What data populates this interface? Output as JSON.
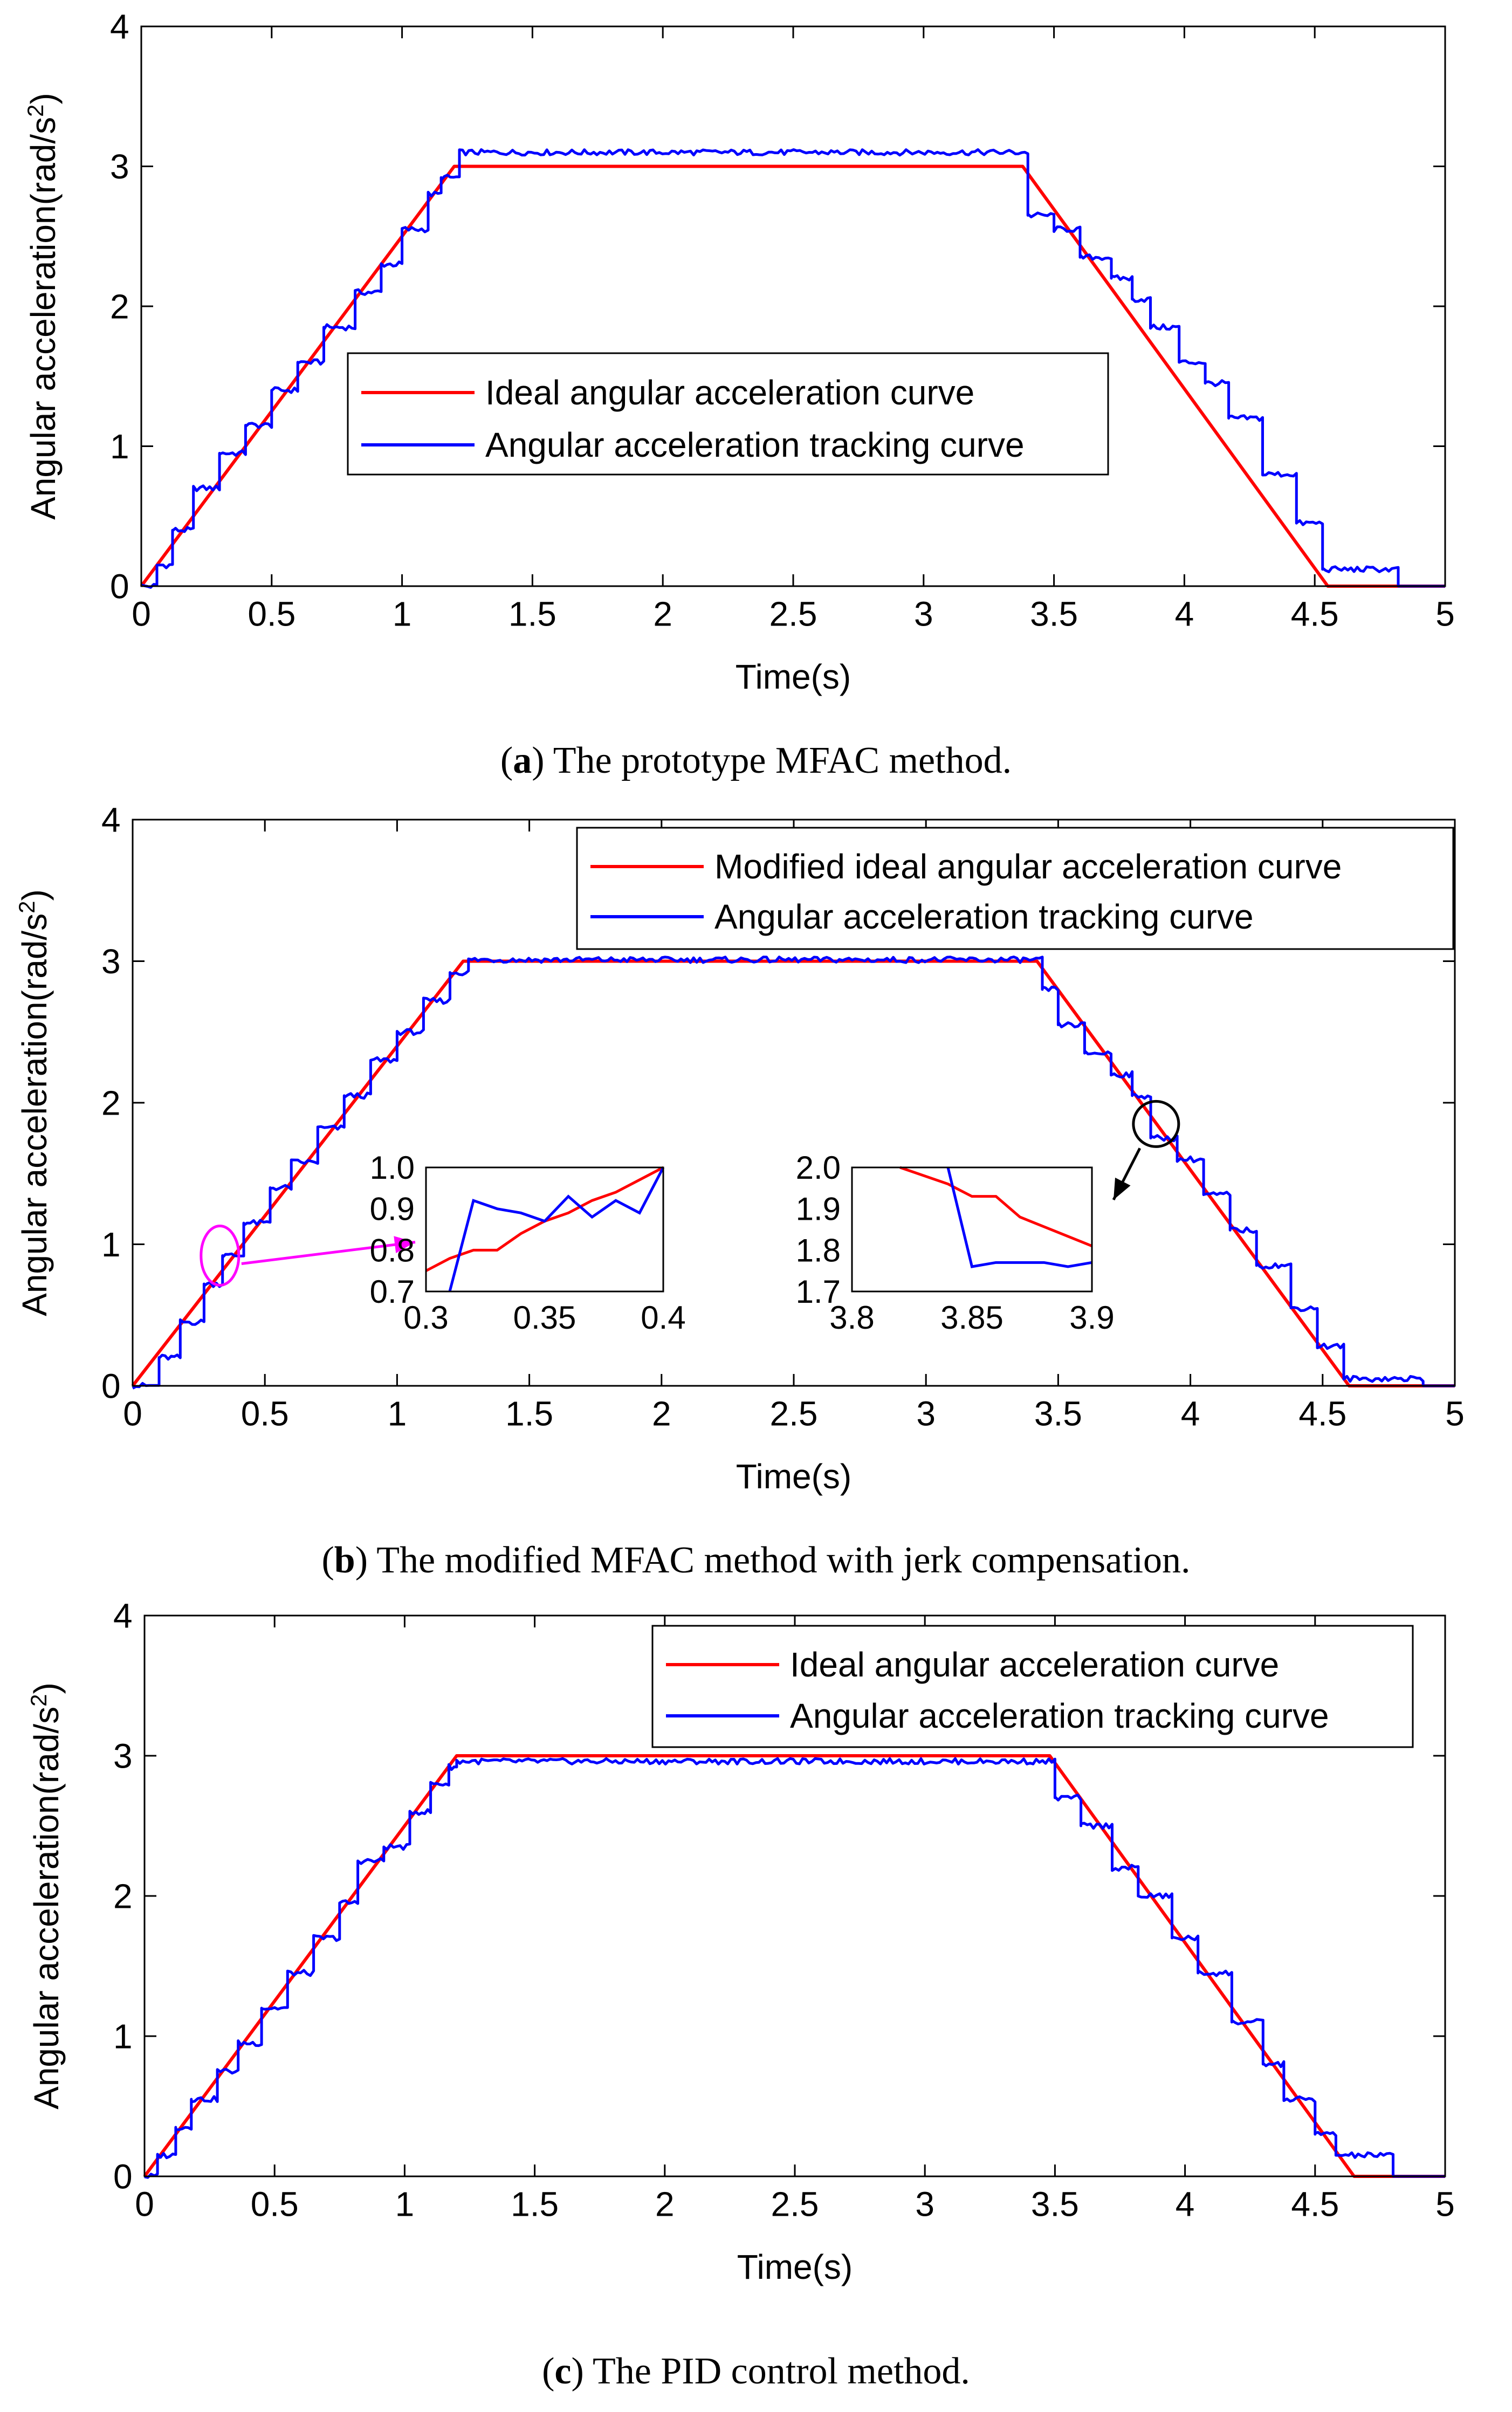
{
  "figure": {
    "panels": [
      {
        "caption_letter": "a",
        "caption_rest": ") The prototype MFAC method.",
        "legend_location": "center-left"
      },
      {
        "caption_letter": "b",
        "caption_rest": ") The modified MFAC method with jerk compensation.",
        "legend_location": "top-right"
      },
      {
        "caption_letter": "c",
        "caption_rest": ") The PID control method.",
        "legend_location": "top-right"
      }
    ]
  },
  "chart_data": [
    {
      "type": "line",
      "title": "",
      "xlabel": "Time(s)",
      "ylabel": "Angular acceleration(rad/s",
      "ylabel_superscript": "2",
      "ylabel_suffix": ")",
      "xlim": [
        0,
        5
      ],
      "ylim": [
        0,
        4
      ],
      "xticks": [
        "0",
        "0.5",
        "1",
        "1.5",
        "2",
        "2.5",
        "3",
        "3.5",
        "4",
        "4.5",
        "5"
      ],
      "yticks": [
        "0",
        "1",
        "2",
        "3",
        "4"
      ],
      "grid": false,
      "series": [
        {
          "name": "Ideal angular acceleration curve",
          "color": "#ff0000",
          "kind": "smooth",
          "x": [
            0,
            1.2,
            3.38,
            4.55,
            5.0
          ],
          "y": [
            0,
            3.0,
            3.0,
            0.0,
            0.0
          ]
        },
        {
          "name": "Angular acceleration tracking curve",
          "color": "#0000ff",
          "kind": "staircase",
          "steps": [
            [
              0,
              0
            ],
            [
              0.06,
              0.15
            ],
            [
              0.12,
              0.4
            ],
            [
              0.2,
              0.7
            ],
            [
              0.3,
              0.95
            ],
            [
              0.4,
              1.15
            ],
            [
              0.5,
              1.4
            ],
            [
              0.6,
              1.6
            ],
            [
              0.7,
              1.85
            ],
            [
              0.82,
              2.1
            ],
            [
              0.92,
              2.3
            ],
            [
              1.0,
              2.55
            ],
            [
              1.1,
              2.8
            ],
            [
              1.15,
              2.92
            ],
            [
              1.22,
              3.1
            ],
            [
              3.4,
              2.65
            ],
            [
              3.5,
              2.55
            ],
            [
              3.6,
              2.35
            ],
            [
              3.72,
              2.2
            ],
            [
              3.8,
              2.05
            ],
            [
              3.87,
              1.85
            ],
            [
              3.98,
              1.6
            ],
            [
              4.08,
              1.45
            ],
            [
              4.17,
              1.2
            ],
            [
              4.3,
              0.8
            ],
            [
              4.43,
              0.45
            ],
            [
              4.53,
              0.12
            ],
            [
              4.82,
              0.0
            ],
            [
              5.0,
              0.0
            ]
          ]
        }
      ]
    },
    {
      "type": "line",
      "title": "",
      "xlabel": "Time(s)",
      "ylabel": "Angular acceleration(rad/s",
      "ylabel_superscript": "2",
      "ylabel_suffix": ")",
      "xlim": [
        0,
        5
      ],
      "ylim": [
        0,
        4
      ],
      "xticks": [
        "0",
        "0.5",
        "1",
        "1.5",
        "2",
        "2.5",
        "3",
        "3.5",
        "4",
        "4.5",
        "5"
      ],
      "yticks": [
        "0",
        "1",
        "2",
        "3",
        "4"
      ],
      "grid": false,
      "series": [
        {
          "name": "Modified ideal angular acceleration curve",
          "color": "#ff0000",
          "kind": "smooth",
          "x": [
            0,
            1.25,
            3.42,
            4.6,
            5.0
          ],
          "y": [
            0,
            3.0,
            3.0,
            0.0,
            0.0
          ]
        },
        {
          "name": "Angular acceleration tracking curve",
          "color": "#0000ff",
          "kind": "staircase",
          "steps": [
            [
              0,
              0
            ],
            [
              0.1,
              0.2
            ],
            [
              0.18,
              0.45
            ],
            [
              0.27,
              0.72
            ],
            [
              0.34,
              0.92
            ],
            [
              0.42,
              1.15
            ],
            [
              0.52,
              1.4
            ],
            [
              0.6,
              1.58
            ],
            [
              0.7,
              1.82
            ],
            [
              0.8,
              2.05
            ],
            [
              0.9,
              2.3
            ],
            [
              1.0,
              2.5
            ],
            [
              1.1,
              2.72
            ],
            [
              1.2,
              2.92
            ],
            [
              1.27,
              3.01
            ],
            [
              3.44,
              2.8
            ],
            [
              3.5,
              2.55
            ],
            [
              3.6,
              2.35
            ],
            [
              3.7,
              2.2
            ],
            [
              3.78,
              2.05
            ],
            [
              3.85,
              1.75
            ],
            [
              3.95,
              1.6
            ],
            [
              4.05,
              1.35
            ],
            [
              4.15,
              1.1
            ],
            [
              4.25,
              0.85
            ],
            [
              4.38,
              0.55
            ],
            [
              4.48,
              0.28
            ],
            [
              4.58,
              0.05
            ],
            [
              4.88,
              0.0
            ],
            [
              5.0,
              0.0
            ]
          ]
        }
      ],
      "annotations": [
        {
          "kind": "ellipse",
          "color": "#ff00ff",
          "center": [
            0.33,
            0.92
          ],
          "target_inset": 0
        },
        {
          "kind": "ellipse",
          "color": "#000000",
          "center": [
            3.87,
            1.85
          ],
          "target_inset": 1
        }
      ],
      "insets": [
        {
          "xlim": [
            0.3,
            0.4
          ],
          "ylim": [
            0.7,
            1.0
          ],
          "xticks": [
            "0.3",
            "0.35",
            "0.4"
          ],
          "yticks": [
            "0.7",
            "0.8",
            "0.9",
            "1.0"
          ],
          "series": [
            {
              "name": "Modified ideal angular acceleration curve",
              "color": "#ff0000",
              "x": [
                0.3,
                0.31,
                0.32,
                0.33,
                0.34,
                0.35,
                0.36,
                0.37,
                0.38,
                0.39,
                0.4
              ],
              "y": [
                0.75,
                0.78,
                0.8,
                0.8,
                0.84,
                0.87,
                0.89,
                0.92,
                0.94,
                0.97,
                1.0
              ]
            },
            {
              "name": "Angular acceleration tracking curve",
              "color": "#0000ff",
              "x": [
                0.31,
                0.32,
                0.33,
                0.34,
                0.35,
                0.36,
                0.37,
                0.38,
                0.39,
                0.4
              ],
              "y": [
                0.7,
                0.92,
                0.9,
                0.89,
                0.87,
                0.93,
                0.88,
                0.92,
                0.89,
                1.0
              ]
            }
          ]
        },
        {
          "xlim": [
            3.8,
            3.9
          ],
          "ylim": [
            1.7,
            2.0
          ],
          "xticks": [
            "3.8",
            "3.85",
            "3.9"
          ],
          "yticks": [
            "1.7",
            "1.8",
            "1.9",
            "2.0"
          ],
          "series": [
            {
              "name": "Modified ideal angular acceleration curve",
              "color": "#ff0000",
              "x": [
                3.82,
                3.84,
                3.85,
                3.86,
                3.87,
                3.9
              ],
              "y": [
                2.0,
                1.96,
                1.93,
                1.93,
                1.88,
                1.81
              ]
            },
            {
              "name": "Angular acceleration tracking curve",
              "color": "#0000ff",
              "x": [
                3.84,
                3.85,
                3.86,
                3.87,
                3.88,
                3.89,
                3.9
              ],
              "y": [
                2.0,
                1.76,
                1.77,
                1.77,
                1.77,
                1.76,
                1.77
              ]
            }
          ]
        }
      ]
    },
    {
      "type": "line",
      "title": "",
      "xlabel": "Time(s)",
      "ylabel": "Angular acceleration(rad/s",
      "ylabel_superscript": "2",
      "ylabel_suffix": ")",
      "xlim": [
        0,
        5
      ],
      "ylim": [
        0,
        4
      ],
      "xticks": [
        "0",
        "0.5",
        "1",
        "1.5",
        "2",
        "2.5",
        "3",
        "3.5",
        "4",
        "4.5",
        "5"
      ],
      "yticks": [
        "0",
        "1",
        "2",
        "3",
        "4"
      ],
      "grid": false,
      "series": [
        {
          "name": "Ideal angular acceleration curve",
          "color": "#ff0000",
          "kind": "smooth",
          "x": [
            0,
            1.2,
            3.48,
            4.65,
            5.0
          ],
          "y": [
            0,
            3.0,
            3.0,
            0.0,
            0.0
          ]
        },
        {
          "name": "Angular acceleration tracking curve",
          "color": "#0000ff",
          "kind": "staircase",
          "steps": [
            [
              0,
              0
            ],
            [
              0.05,
              0.15
            ],
            [
              0.12,
              0.35
            ],
            [
              0.18,
              0.55
            ],
            [
              0.28,
              0.75
            ],
            [
              0.36,
              0.95
            ],
            [
              0.45,
              1.2
            ],
            [
              0.55,
              1.45
            ],
            [
              0.65,
              1.7
            ],
            [
              0.75,
              1.95
            ],
            [
              0.82,
              2.25
            ],
            [
              0.92,
              2.35
            ],
            [
              1.02,
              2.6
            ],
            [
              1.1,
              2.8
            ],
            [
              1.17,
              2.92
            ],
            [
              1.2,
              2.96
            ],
            [
              3.5,
              2.7
            ],
            [
              3.6,
              2.5
            ],
            [
              3.72,
              2.2
            ],
            [
              3.82,
              2.0
            ],
            [
              3.95,
              1.7
            ],
            [
              4.05,
              1.45
            ],
            [
              4.18,
              1.1
            ],
            [
              4.3,
              0.8
            ],
            [
              4.38,
              0.55
            ],
            [
              4.5,
              0.3
            ],
            [
              4.58,
              0.15
            ],
            [
              4.8,
              0.0
            ],
            [
              5.0,
              0.0
            ]
          ]
        }
      ]
    }
  ]
}
